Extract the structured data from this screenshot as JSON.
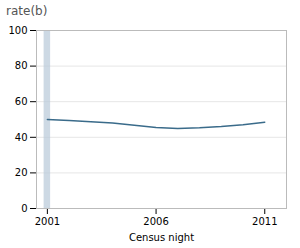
{
  "chart_data": {
    "type": "line",
    "title": "rate(b)",
    "xlabel": "Census night",
    "x": [
      2001,
      2002,
      2003,
      2004,
      2005,
      2006,
      2007,
      2008,
      2009,
      2010,
      2011
    ],
    "values": [
      50.0,
      49.5,
      48.8,
      48.0,
      46.8,
      45.5,
      45.0,
      45.3,
      46.0,
      47.0,
      48.5
    ],
    "color": "#3a6b8a",
    "shaded_spans": [
      {
        "x0": 2000.85,
        "x1": 2001.15,
        "color": "#b8c9d8"
      }
    ],
    "xlim": [
      2000.5,
      2012.0
    ],
    "xticks": [
      2001,
      2006,
      2011
    ],
    "ylim": [
      0,
      100
    ],
    "yticks": [
      0,
      20,
      40,
      60,
      80,
      100
    ],
    "grid": true
  }
}
